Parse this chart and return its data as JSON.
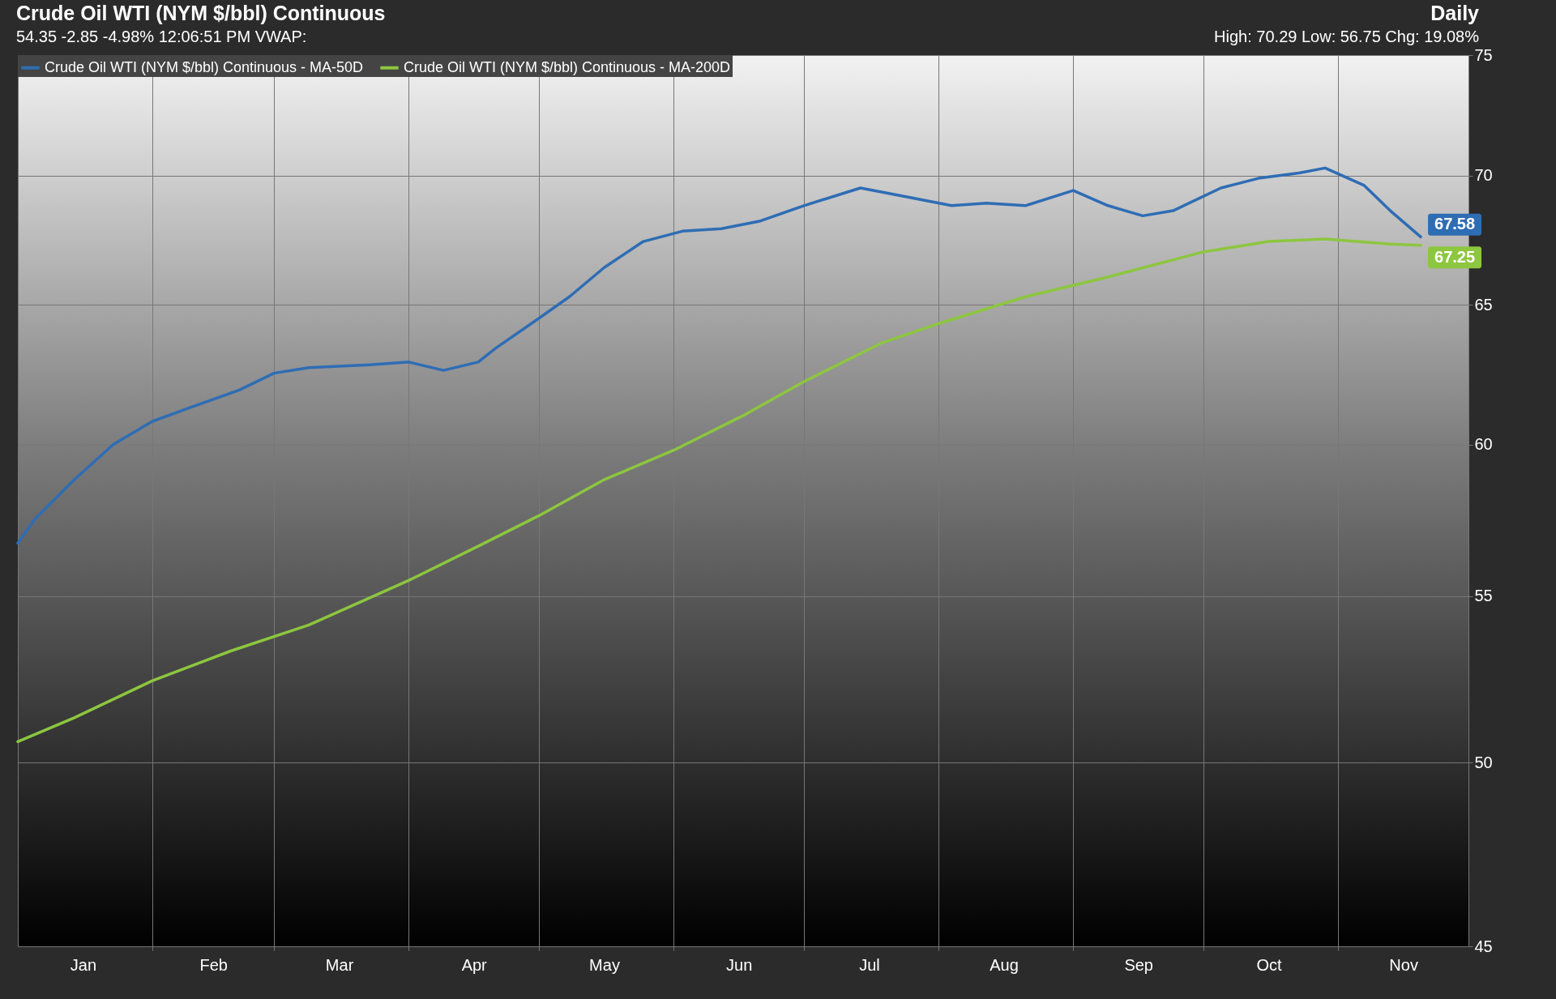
{
  "chart_data": {
    "type": "line",
    "title": "Crude Oil WTI (NYM $/bbl) Continuous",
    "subtitle": "54.35 -2.85 -4.98% 12:06:51 PM VWAP:",
    "annotations": [
      "Daily",
      "High: 70.29 Low: 56.75 Chg: 19.08%"
    ],
    "series": [
      {
        "name": "Crude Oil WTI (NYM $/bbl) Continuous - MA-50D",
        "color": "#2e6db4",
        "x": [
          "--01-01",
          "--01-05",
          "--01-14",
          "--01-23",
          "--02-01",
          "--02-10",
          "--02-21",
          "--03-01",
          "--03-09",
          "--03-23",
          "--04-01",
          "--04-09",
          "--04-17",
          "--04-21",
          "--05-01",
          "--05-08",
          "--05-16",
          "--05-25",
          "--06-03",
          "--06-12",
          "--06-21",
          "--07-01",
          "--07-14",
          "--07-23",
          "--08-04",
          "--08-12",
          "--08-21",
          "--09-01",
          "--09-09",
          "--09-17",
          "--09-24",
          "--10-05",
          "--10-14",
          "--10-23",
          "--10-29",
          "--11-07",
          "--11-13",
          "--11-20"
        ],
        "values": [
          56.7,
          57.5,
          58.8,
          60.0,
          60.8,
          61.3,
          61.9,
          62.5,
          62.7,
          62.8,
          62.9,
          62.6,
          62.9,
          63.4,
          64.5,
          65.3,
          66.4,
          67.4,
          67.8,
          67.9,
          68.2,
          68.8,
          69.5,
          69.2,
          68.8,
          68.9,
          68.8,
          69.4,
          68.8,
          68.4,
          68.6,
          69.5,
          69.9,
          70.1,
          70.3,
          69.6,
          68.6,
          67.58
        ],
        "value_labels": [
          null,
          null,
          null,
          null,
          null,
          null,
          null,
          null,
          null,
          null,
          null,
          null,
          null,
          null,
          null,
          null,
          null,
          null,
          null,
          null,
          null,
          null,
          null,
          null,
          null,
          null,
          null,
          null,
          null,
          null,
          null,
          null,
          null,
          null,
          null,
          null,
          null,
          "67.58"
        ]
      },
      {
        "name": "Crude Oil WTI (NYM $/bbl) Continuous - MA-200D",
        "color": "#8dc63f",
        "x": [
          "--01-01",
          "--01-14",
          "--02-01",
          "--02-19",
          "--03-09",
          "--04-01",
          "--04-17",
          "--05-01",
          "--05-16",
          "--06-01",
          "--06-17",
          "--07-01",
          "--07-19",
          "--08-01",
          "--08-21",
          "--09-08",
          "--10-01",
          "--10-16",
          "--10-29",
          "--11-13",
          "--11-20"
        ],
        "values": [
          50.6,
          51.3,
          52.4,
          53.3,
          54.1,
          55.5,
          56.6,
          57.6,
          58.8,
          59.8,
          61.0,
          62.2,
          63.6,
          64.3,
          65.3,
          66.0,
          67.0,
          67.4,
          67.5,
          67.3,
          67.25
        ],
        "value_labels": [
          null,
          null,
          null,
          null,
          null,
          null,
          null,
          null,
          null,
          null,
          null,
          null,
          null,
          null,
          null,
          null,
          null,
          null,
          null,
          null,
          "67.25"
        ]
      }
    ],
    "xlim": [
      "--01-01",
      "--12-01"
    ],
    "xticks": [
      {
        "value": "--01-16",
        "label": "Jan"
      },
      {
        "value": "--02-01",
        "label": null
      },
      {
        "value": "--02-15",
        "label": "Feb"
      },
      {
        "value": "--03-01",
        "label": null
      },
      {
        "value": "--03-16",
        "label": "Mar"
      },
      {
        "value": "--04-01",
        "label": null
      },
      {
        "value": "--04-16",
        "label": "Apr"
      },
      {
        "value": "--05-01",
        "label": null
      },
      {
        "value": "--05-16",
        "label": "May"
      },
      {
        "value": "--06-01",
        "label": null
      },
      {
        "value": "--06-16",
        "label": "Jun"
      },
      {
        "value": "--07-01",
        "label": null
      },
      {
        "value": "--07-16",
        "label": "Jul"
      },
      {
        "value": "--08-01",
        "label": null
      },
      {
        "value": "--08-16",
        "label": "Aug"
      },
      {
        "value": "--09-01",
        "label": null
      },
      {
        "value": "--09-16",
        "label": "Sep"
      },
      {
        "value": "--10-01",
        "label": null
      },
      {
        "value": "--10-16",
        "label": "Oct"
      },
      {
        "value": "--11-01",
        "label": null
      },
      {
        "value": "--11-16",
        "label": "Nov"
      }
    ],
    "ylim": [
      45,
      75
    ],
    "yticks": [
      45,
      50,
      55,
      60,
      65,
      70,
      75
    ],
    "log": true,
    "grid": true,
    "legend": "top left",
    "line_style": "solid"
  }
}
